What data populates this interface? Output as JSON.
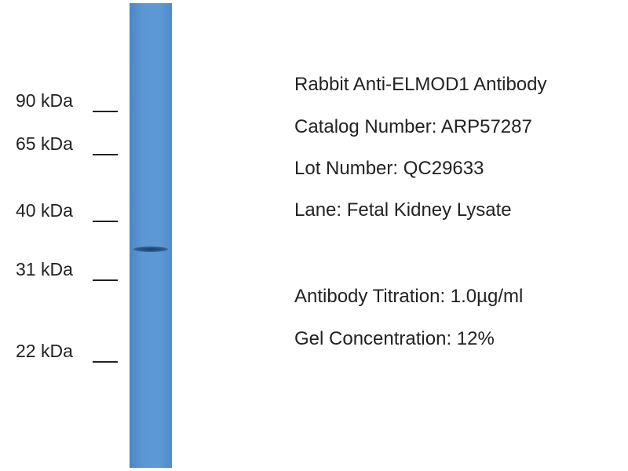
{
  "markers": [
    "90 kDa",
    "65 kDa",
    "40 kDa",
    "31 kDa",
    "22 kDa"
  ],
  "info": [
    "Rabbit Anti-ELMOD1 Antibody",
    "Catalog Number: ARP57287",
    "Lot Number: QC29633",
    "Lane: Fetal Kidney Lysate",
    "Antibody Titration: 1.0µg/ml",
    "Gel Concentration: 12%"
  ]
}
